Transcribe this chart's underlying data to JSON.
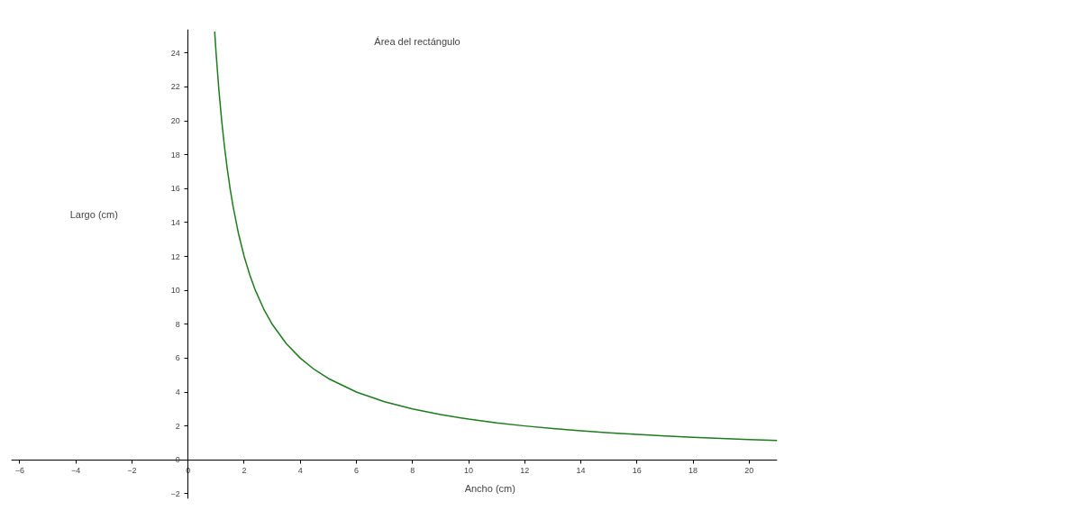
{
  "chart_data": {
    "type": "line",
    "title": "Área del rectángulo",
    "xlabel": "Ancho (cm)",
    "ylabel": "Largo (cm)",
    "x": [
      0.95,
      1,
      1.1,
      1.2,
      1.3,
      1.4,
      1.5,
      1.6,
      1.8,
      2,
      2.2,
      2.4,
      2.7,
      3,
      3.5,
      4,
      4.5,
      5,
      6,
      7,
      8,
      9,
      10,
      11,
      12,
      13,
      14,
      15,
      16,
      17,
      18,
      19,
      20,
      21
    ],
    "series": [
      {
        "color": "#1e7b1e",
        "values": [
          25.26,
          24,
          21.82,
          20,
          18.46,
          17.14,
          16,
          15,
          13.33,
          12,
          10.91,
          10,
          8.89,
          8,
          6.86,
          6,
          5.33,
          4.8,
          4,
          3.43,
          3,
          2.67,
          2.4,
          2.18,
          2,
          1.85,
          1.71,
          1.6,
          1.5,
          1.41,
          1.33,
          1.26,
          1.2,
          1.14
        ]
      }
    ],
    "xlim": [
      -6.3,
      21
    ],
    "ylim": [
      -2.3,
      25.4
    ],
    "xticks": [
      -6,
      -4,
      -2,
      0,
      2,
      4,
      6,
      8,
      10,
      12,
      14,
      16,
      18,
      20
    ],
    "yticks": [
      -2,
      0,
      2,
      4,
      6,
      8,
      10,
      12,
      14,
      16,
      18,
      20,
      22,
      24
    ],
    "grid": false,
    "marker": "none",
    "line_style": "solid"
  }
}
